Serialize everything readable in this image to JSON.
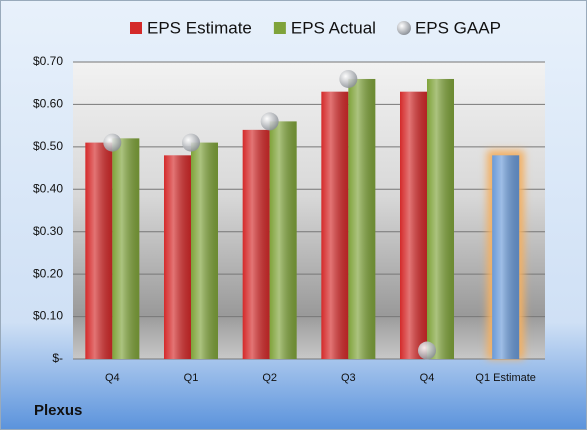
{
  "chart_data": {
    "type": "bar",
    "company": "Plexus",
    "categories": [
      "Q4",
      "Q1",
      "Q2",
      "Q3",
      "Q4",
      "Q1 Estimate"
    ],
    "series": [
      {
        "name": "EPS Estimate",
        "color": "#d42a2a",
        "values": [
          0.51,
          0.48,
          0.54,
          0.63,
          0.63,
          0.48
        ]
      },
      {
        "name": "EPS Actual",
        "color": "#7fa33a",
        "values": [
          0.52,
          0.51,
          0.56,
          0.66,
          0.66,
          null
        ]
      },
      {
        "name": "EPS GAAP",
        "color": "#b8bcc2",
        "marker": "circle",
        "values": [
          0.51,
          0.51,
          0.56,
          0.66,
          0.02,
          null
        ]
      }
    ],
    "highlight": {
      "index": 5,
      "color": "#6a9ad8",
      "glow": "#f3b064"
    },
    "ylim": [
      0,
      0.7
    ],
    "yticks": [
      {
        "value": 0,
        "label": "$-"
      },
      {
        "value": 0.1,
        "label": "$0.10"
      },
      {
        "value": 0.2,
        "label": "$0.20"
      },
      {
        "value": 0.3,
        "label": "$0.30"
      },
      {
        "value": 0.4,
        "label": "$0.40"
      },
      {
        "value": 0.5,
        "label": "$0.50"
      },
      {
        "value": 0.6,
        "label": "$0.60"
      },
      {
        "value": 0.7,
        "label": "$0.70"
      }
    ],
    "grid": true
  }
}
